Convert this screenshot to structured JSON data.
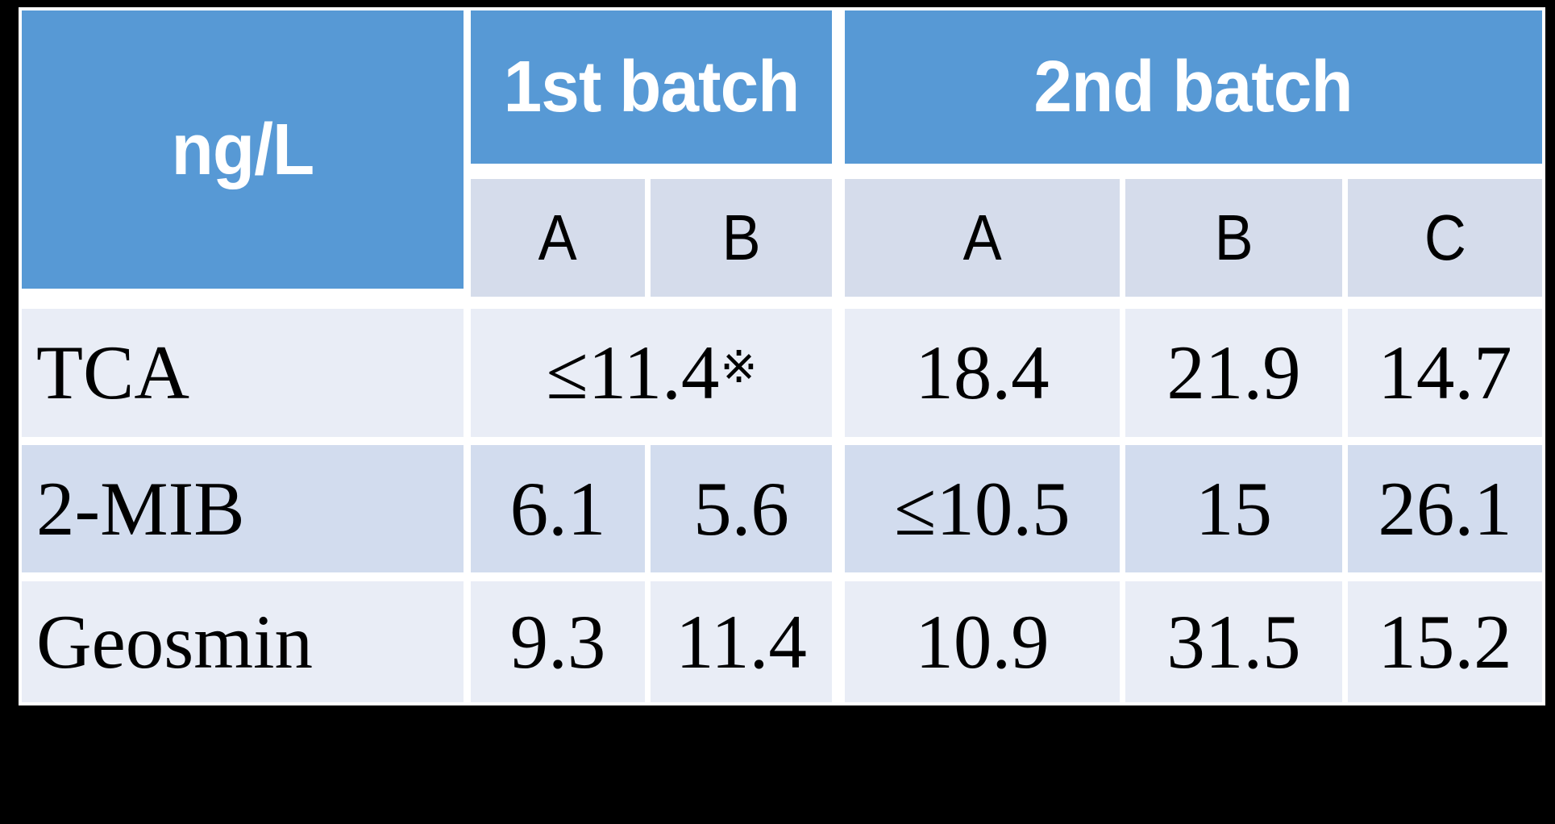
{
  "table": {
    "unit_label": "ng/L",
    "groups": [
      {
        "label": "1st batch",
        "subcols": [
          "A",
          "B"
        ]
      },
      {
        "label": "2nd batch",
        "subcols": [
          "A",
          "B",
          "C"
        ]
      }
    ],
    "rows": [
      {
        "label": "TCA",
        "batch1_merged_value": "≤11.4",
        "batch1_merged_note": "※",
        "batch2": {
          "a": "18.4",
          "b": "21.9",
          "c": "14.7"
        }
      },
      {
        "label": "2-MIB",
        "batch1": {
          "a": "6.1",
          "b": "5.6"
        },
        "batch2": {
          "a": "≤10.5",
          "b": "15",
          "c": "26.1"
        }
      },
      {
        "label": "Geosmin",
        "batch1": {
          "a": "9.3",
          "b": "11.4"
        },
        "batch2": {
          "a": "10.9",
          "b": "31.5",
          "c": "15.2"
        }
      }
    ]
  },
  "colors": {
    "accent_blue": "#5799D5",
    "subheader_bg": "#D5DCEB",
    "row_light": "#E9EDF6",
    "row_dark": "#D2DCEE",
    "border_white": "#FFFFFF",
    "background": "#000000",
    "header_text": "#FFFFFF",
    "body_text": "#000000"
  },
  "chart_data": {
    "type": "table",
    "title": "",
    "unit": "ng/L",
    "column_groups": [
      {
        "label": "1st batch",
        "columns": [
          "A",
          "B"
        ]
      },
      {
        "label": "2nd batch",
        "columns": [
          "A",
          "B",
          "C"
        ]
      }
    ],
    "rows": [
      {
        "label": "TCA",
        "batch1": {
          "A_B_merged": "≤11.4※"
        },
        "batch2": {
          "A": 18.4,
          "B": 21.9,
          "C": 14.7
        }
      },
      {
        "label": "2-MIB",
        "batch1": {
          "A": 6.1,
          "B": 5.6
        },
        "batch2": {
          "A": "≤10.5",
          "B": 15,
          "C": 26.1
        }
      },
      {
        "label": "Geosmin",
        "batch1": {
          "A": 9.3,
          "B": 11.4
        },
        "batch2": {
          "A": 10.9,
          "B": 31.5,
          "C": 15.2
        }
      }
    ],
    "notes": [
      "※ footnote mark attached to the merged 1st-batch TCA value"
    ]
  }
}
